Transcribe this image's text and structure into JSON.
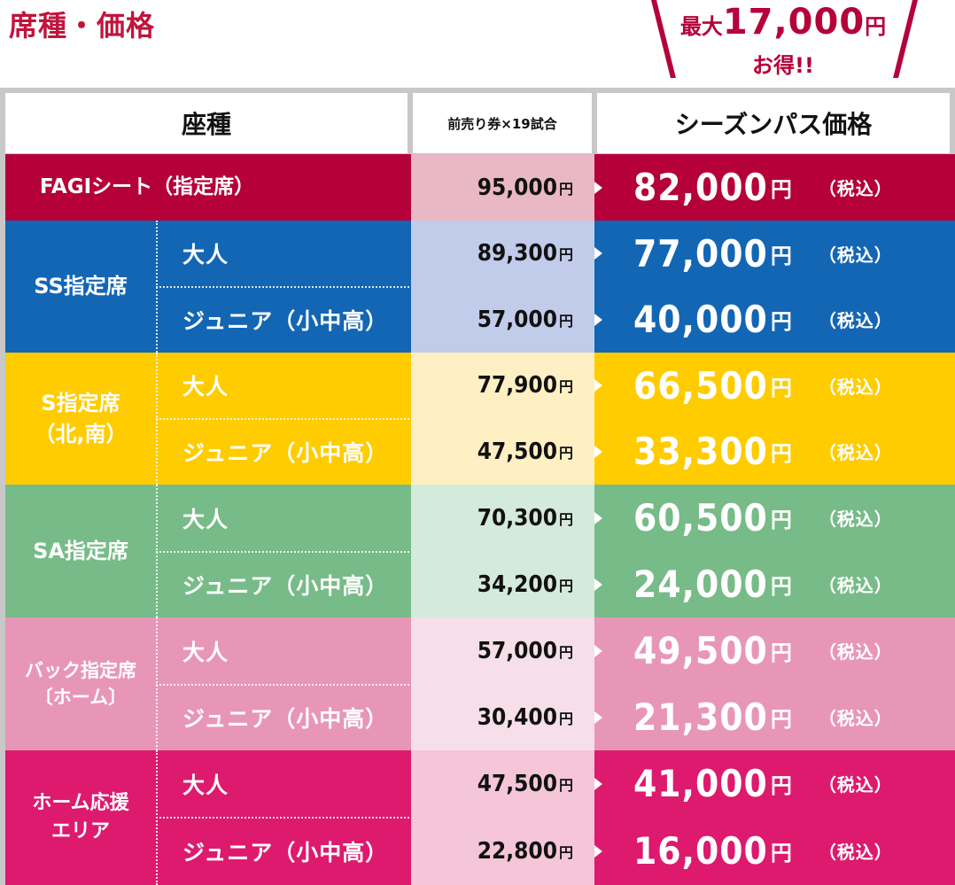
{
  "title": "席種・価格",
  "promo": {
    "prefix": "最大",
    "amount": "17,000",
    "yen": "円",
    "suffix": "お得!!"
  },
  "headers": {
    "seat": "座種",
    "presale": "前売り券×19試合",
    "season": "シーズンパス価格"
  },
  "yen": "円",
  "tax": "（税込）",
  "colors": {
    "fagi": "#b5003a",
    "ss": "#1366b4",
    "s": "#ffcc00",
    "sa": "#77bb88",
    "back": "#e896b8",
    "home": "#dd1a6e"
  },
  "rows": {
    "fagi": {
      "group": "FAGIシート（指定席）",
      "presale": "95,000",
      "season": "82,000"
    },
    "ss_adult": {
      "group": "SS指定席",
      "sub": "大人",
      "presale": "89,300",
      "season": "77,000"
    },
    "ss_junior": {
      "sub": "ジュニア（小中高）",
      "presale": "57,000",
      "season": "40,000"
    },
    "s_adult": {
      "group1": "S指定席",
      "group2": "（北,南）",
      "sub": "大人",
      "presale": "77,900",
      "season": "66,500"
    },
    "s_junior": {
      "sub": "ジュニア（小中高）",
      "presale": "47,500",
      "season": "33,300"
    },
    "sa_adult": {
      "group": "SA指定席",
      "sub": "大人",
      "presale": "70,300",
      "season": "60,500"
    },
    "sa_junior": {
      "sub": "ジュニア（小中高）",
      "presale": "34,200",
      "season": "24,000"
    },
    "back_adult": {
      "group1": "バック指定席",
      "group2": "〔ホーム〕",
      "sub": "大人",
      "presale": "57,000",
      "season": "49,500"
    },
    "back_junior": {
      "sub": "ジュニア（小中高）",
      "presale": "30,400",
      "season": "21,300"
    },
    "home_adult": {
      "group1": "ホーム応援",
      "group2": "エリア",
      "sub": "大人",
      "presale": "47,500",
      "season": "41,000"
    },
    "home_junior": {
      "sub": "ジュニア（小中高）",
      "presale": "22,800",
      "season": "16,000"
    }
  }
}
